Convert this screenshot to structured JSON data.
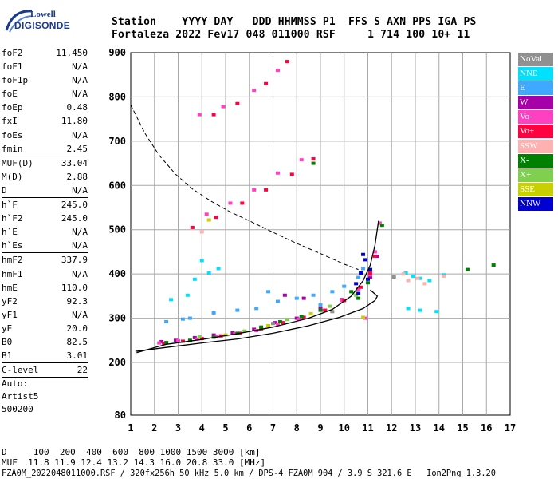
{
  "branding": {
    "line1": "Lowell",
    "line2": "DIGISONDE"
  },
  "header": {
    "line1": "Station    YYYY DAY   DDD HHMMSS P1  FFS S AXN PPS IGA PS",
    "line2": "Fortaleza 2022 Fev17 048 011000 RSF     1 714 100 10+ 11"
  },
  "params": [
    {
      "label": "foF2",
      "value": "11.450"
    },
    {
      "label": "foF1",
      "value": "N/A"
    },
    {
      "label": "foF1p",
      "value": "N/A"
    },
    {
      "label": "foE",
      "value": "N/A"
    },
    {
      "label": "foEp",
      "value": "0.48"
    },
    {
      "label": "fxI",
      "value": "11.80"
    },
    {
      "label": "foEs",
      "value": "N/A"
    },
    {
      "label": "fmin",
      "value": "2.45"
    },
    {
      "label": "MUF(D)",
      "value": "33.04"
    },
    {
      "label": "M(D)",
      "value": "2.88"
    },
    {
      "label": "D",
      "value": "N/A"
    },
    {
      "label": "h`F",
      "value": "245.0"
    },
    {
      "label": "h`F2",
      "value": "245.0"
    },
    {
      "label": "h`E",
      "value": "N/A"
    },
    {
      "label": "h`Es",
      "value": "N/A"
    },
    {
      "label": "hmF2",
      "value": "337.9"
    },
    {
      "label": "hmF1",
      "value": "N/A"
    },
    {
      "label": "hmE",
      "value": "110.0"
    },
    {
      "label": "yF2",
      "value": "92.3"
    },
    {
      "label": "yF1",
      "value": "N/A"
    },
    {
      "label": "yE",
      "value": "20.0"
    },
    {
      "label": "B0",
      "value": "82.5"
    },
    {
      "label": "B1",
      "value": "3.01"
    },
    {
      "label": "C-level",
      "value": "22"
    }
  ],
  "aux": [
    "Auto:",
    "Artist5",
    "500200"
  ],
  "legend": [
    {
      "label": "NoVal",
      "color": "#909090"
    },
    {
      "label": "NNE",
      "color": "#00e0ff"
    },
    {
      "label": "E",
      "color": "#3fa8ff"
    },
    {
      "label": "W",
      "color": "#a800a8"
    },
    {
      "label": "Vo-",
      "color": "#ff40c0"
    },
    {
      "label": "Vo+",
      "color": "#ff0040"
    },
    {
      "label": "SSW",
      "color": "#ffb0b0"
    },
    {
      "label": "X-",
      "color": "#008000"
    },
    {
      "label": "X+",
      "color": "#80d050"
    },
    {
      "label": "SSE",
      "color": "#c8d000"
    },
    {
      "label": "NNW",
      "color": "#0000d0"
    }
  ],
  "footer": {
    "line1": "D     100  200  400  600  800 1000 1500 3000 [km]",
    "line2": "MUF  11.8 11.9 12.4 13.2 14.3 16.0 20.8 33.0 [MHz]",
    "line3": "FZA0M_2022048011000.RSF / 320fx256h 50 kHz 5.0 km / DPS-4 FZA0M 904 / 3.9 S 321.6 E   Ion2Png 1.3.20"
  },
  "chart_data": {
    "type": "scatter",
    "xlim": [
      1,
      17
    ],
    "ylim": [
      80,
      900
    ],
    "x_ticks": [
      1,
      2,
      3,
      4,
      5,
      6,
      7,
      8,
      9,
      10,
      11,
      12,
      13,
      14,
      15,
      16,
      17
    ],
    "y_ticks": [
      80,
      200,
      300,
      400,
      500,
      600,
      700,
      800,
      900
    ],
    "grid": true,
    "series": [
      {
        "name": "NNE",
        "color": "#00e0ff",
        "points": [
          [
            12.6,
            402
          ],
          [
            12.9,
            395
          ],
          [
            13.2,
            390
          ],
          [
            13.6,
            385
          ],
          [
            12.7,
            322
          ],
          [
            13.2,
            318
          ],
          [
            13.9,
            315
          ],
          [
            3.7,
            388
          ],
          [
            4.3,
            402
          ],
          [
            4.7,
            412
          ],
          [
            2.7,
            342
          ],
          [
            3.4,
            352
          ],
          [
            14.2,
            398
          ],
          [
            4.0,
            430
          ]
        ]
      },
      {
        "name": "E",
        "color": "#3fa8ff",
        "points": [
          [
            3.5,
            300
          ],
          [
            4.5,
            312
          ],
          [
            5.5,
            318
          ],
          [
            6.3,
            322
          ],
          [
            7.2,
            338
          ],
          [
            8.0,
            345
          ],
          [
            8.7,
            352
          ],
          [
            9.5,
            360
          ],
          [
            10.0,
            372
          ],
          [
            10.6,
            392
          ],
          [
            10.8,
            412
          ],
          [
            3.2,
            298
          ],
          [
            2.5,
            292
          ],
          [
            9.0,
            330
          ],
          [
            6.8,
            360
          ]
        ]
      },
      {
        "name": "W",
        "color": "#a800a8",
        "points": [
          [
            2.3,
            247
          ],
          [
            2.9,
            250
          ],
          [
            3.7,
            256
          ],
          [
            4.5,
            262
          ],
          [
            5.3,
            267
          ],
          [
            6.2,
            275
          ],
          [
            7.1,
            290
          ],
          [
            8.0,
            300
          ],
          [
            9.0,
            322
          ],
          [
            9.9,
            342
          ],
          [
            10.6,
            365
          ],
          [
            11.1,
            392
          ],
          [
            11.4,
            440
          ],
          [
            7.5,
            352
          ],
          [
            8.3,
            345
          ]
        ]
      },
      {
        "name": "Vo-",
        "color": "#ff40c0",
        "points": [
          [
            2.2,
            244
          ],
          [
            3.0,
            249
          ],
          [
            3.8,
            253
          ],
          [
            4.6,
            259
          ],
          [
            5.4,
            265
          ],
          [
            6.3,
            272
          ],
          [
            7.2,
            287
          ],
          [
            8.1,
            298
          ],
          [
            9.1,
            318
          ],
          [
            9.9,
            340
          ],
          [
            10.6,
            366
          ],
          [
            11.1,
            398
          ],
          [
            11.3,
            450
          ],
          [
            11.5,
            515
          ],
          [
            4.2,
            535
          ],
          [
            5.2,
            560
          ],
          [
            6.2,
            590
          ],
          [
            7.2,
            628
          ],
          [
            8.2,
            658
          ],
          [
            3.9,
            760
          ],
          [
            4.9,
            778
          ],
          [
            6.2,
            815
          ],
          [
            7.2,
            860
          ],
          [
            10.9,
            300
          ]
        ]
      },
      {
        "name": "Vo+",
        "color": "#ff0040",
        "points": [
          [
            2.4,
            243
          ],
          [
            3.2,
            248
          ],
          [
            4.0,
            254
          ],
          [
            4.8,
            260
          ],
          [
            5.6,
            266
          ],
          [
            6.5,
            276
          ],
          [
            7.4,
            290
          ],
          [
            8.3,
            302
          ],
          [
            9.2,
            318
          ],
          [
            10.0,
            340
          ],
          [
            10.7,
            370
          ],
          [
            11.1,
            402
          ],
          [
            11.3,
            440
          ],
          [
            3.6,
            505
          ],
          [
            4.6,
            528
          ],
          [
            5.7,
            560
          ],
          [
            6.7,
            590
          ],
          [
            7.8,
            625
          ],
          [
            8.7,
            660
          ],
          [
            4.5,
            760
          ],
          [
            5.5,
            785
          ],
          [
            6.7,
            830
          ],
          [
            7.6,
            880
          ]
        ]
      },
      {
        "name": "SSW",
        "color": "#ffb0b0",
        "points": [
          [
            12.7,
            385
          ],
          [
            13.1,
            390
          ],
          [
            13.4,
            378
          ],
          [
            12.5,
            400
          ],
          [
            14.2,
            395
          ],
          [
            4.0,
            495
          ]
        ]
      },
      {
        "name": "X-",
        "color": "#008000",
        "points": [
          [
            2.5,
            245
          ],
          [
            3.5,
            250
          ],
          [
            4.5,
            257
          ],
          [
            5.5,
            266
          ],
          [
            6.5,
            280
          ],
          [
            7.3,
            292
          ],
          [
            8.2,
            304
          ],
          [
            9.0,
            318
          ],
          [
            10.3,
            360
          ],
          [
            11.0,
            380
          ],
          [
            11.6,
            510
          ],
          [
            8.7,
            650
          ],
          [
            15.2,
            410
          ],
          [
            16.3,
            420
          ],
          [
            10.6,
            345
          ]
        ]
      },
      {
        "name": "X+",
        "color": "#80d050",
        "points": [
          [
            3.9,
            258
          ],
          [
            5.8,
            271
          ],
          [
            7.6,
            297
          ],
          [
            9.4,
            327
          ],
          [
            10.5,
            352
          ]
        ]
      },
      {
        "name": "SSE",
        "color": "#c8d000",
        "points": [
          [
            5.0,
            262
          ],
          [
            6.8,
            283
          ],
          [
            8.6,
            310
          ],
          [
            10.8,
            302
          ],
          [
            4.3,
            522
          ]
        ]
      },
      {
        "name": "NNW",
        "color": "#0000d0",
        "points": [
          [
            10.5,
            378
          ],
          [
            10.7,
            402
          ],
          [
            10.9,
            432
          ],
          [
            11.0,
            388
          ],
          [
            10.6,
            356
          ],
          [
            10.8,
            444
          ],
          [
            11.1,
            410
          ]
        ]
      },
      {
        "name": "NoVal",
        "color": "#909090",
        "points": [
          [
            12.1,
            393
          ],
          [
            9.5,
            315
          ],
          [
            7.0,
            288
          ]
        ]
      }
    ],
    "profile_curve": {
      "color": "#000000",
      "points": [
        [
          1.2,
          225
        ],
        [
          2.5,
          234
        ],
        [
          4.0,
          244
        ],
        [
          5.5,
          253
        ],
        [
          7.0,
          266
        ],
        [
          8.5,
          283
        ],
        [
          9.8,
          302
        ],
        [
          10.8,
          322
        ],
        [
          11.3,
          340
        ],
        [
          11.4,
          350
        ],
        [
          11.1,
          364
        ]
      ]
    },
    "virtual_trace": {
      "color": "#000000",
      "points": [
        [
          1.25,
          222
        ],
        [
          2.5,
          241
        ],
        [
          4.0,
          252
        ],
        [
          5.5,
          265
        ],
        [
          7.0,
          280
        ],
        [
          8.5,
          300
        ],
        [
          9.5,
          320
        ],
        [
          10.3,
          350
        ],
        [
          10.8,
          385
        ],
        [
          11.1,
          420
        ],
        [
          11.3,
          465
        ],
        [
          11.45,
          520
        ]
      ]
    },
    "muf_dashed": {
      "color": "#000000",
      "points": [
        [
          1.0,
          782
        ],
        [
          1.6,
          718
        ],
        [
          2.2,
          668
        ],
        [
          2.9,
          625
        ],
        [
          3.6,
          592
        ],
        [
          4.4,
          564
        ],
        [
          5.2,
          540
        ],
        [
          6.0,
          520
        ],
        [
          7.0,
          494
        ],
        [
          8.0,
          469
        ],
        [
          9.0,
          446
        ],
        [
          10.0,
          422
        ],
        [
          10.6,
          410
        ]
      ]
    }
  }
}
